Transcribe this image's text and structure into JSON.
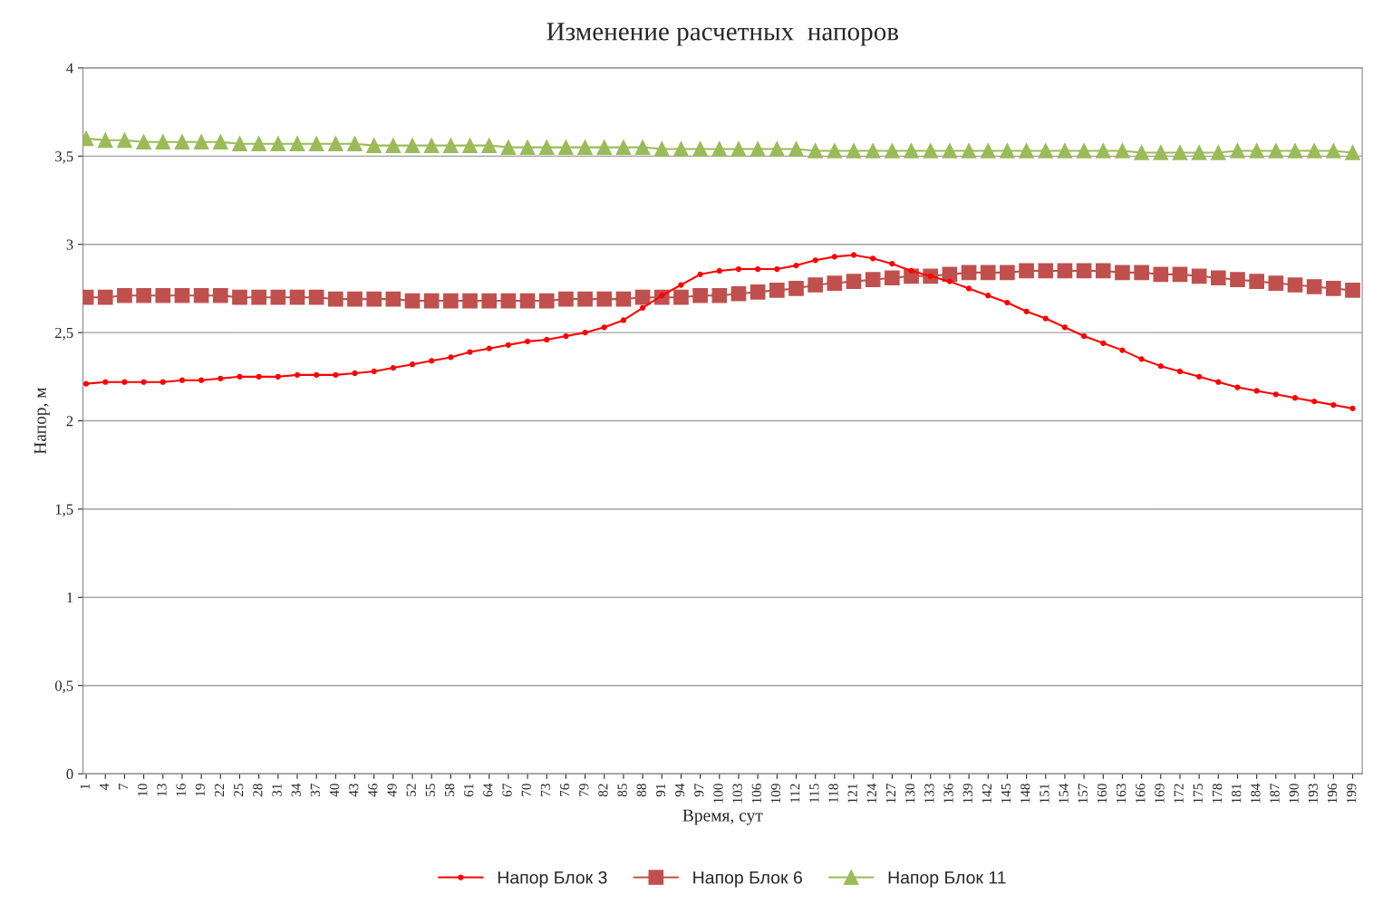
{
  "chart_data": {
    "type": "line",
    "title": "Изменение расчетных  напоров",
    "xlabel": "Время, сут",
    "ylabel": "Напор, м",
    "x": [
      1,
      4,
      7,
      10,
      13,
      16,
      19,
      22,
      25,
      28,
      31,
      34,
      37,
      40,
      43,
      46,
      49,
      52,
      55,
      58,
      61,
      64,
      67,
      70,
      73,
      76,
      79,
      82,
      85,
      88,
      91,
      94,
      97,
      100,
      103,
      106,
      109,
      112,
      115,
      118,
      121,
      124,
      127,
      130,
      133,
      136,
      139,
      142,
      145,
      148,
      151,
      154,
      157,
      160,
      163,
      166,
      169,
      172,
      175,
      178,
      181,
      184,
      187,
      190,
      193,
      196,
      199
    ],
    "xlim": [
      0.5,
      200.5
    ],
    "xticks": [
      1,
      4,
      7,
      10,
      13,
      16,
      19,
      22,
      25,
      28,
      31,
      34,
      37,
      40,
      43,
      46,
      49,
      52,
      55,
      58,
      61,
      64,
      67,
      70,
      73,
      76,
      79,
      82,
      85,
      88,
      91,
      94,
      97,
      100,
      103,
      106,
      109,
      112,
      115,
      118,
      121,
      124,
      127,
      130,
      133,
      136,
      139,
      142,
      145,
      148,
      151,
      154,
      157,
      160,
      163,
      166,
      169,
      172,
      175,
      178,
      181,
      184,
      187,
      190,
      193,
      196,
      199
    ],
    "ylim": [
      0,
      4
    ],
    "yticks": [
      0,
      {
        "value": 0.5,
        "label": "0,5"
      },
      1,
      {
        "value": 1.5,
        "label": "1,5"
      },
      2,
      {
        "value": 2.5,
        "label": "2,5"
      },
      3,
      {
        "value": 3.5,
        "label": "3,5"
      },
      4
    ],
    "grid": "y",
    "legend": "bottom",
    "series": [
      {
        "name": "Напор Блок 3",
        "color": "#ff0000",
        "marker": "circle",
        "values": [
          2.21,
          2.22,
          2.22,
          2.22,
          2.22,
          2.23,
          2.23,
          2.24,
          2.25,
          2.25,
          2.25,
          2.26,
          2.26,
          2.26,
          2.27,
          2.28,
          2.3,
          2.32,
          2.34,
          2.36,
          2.39,
          2.41,
          2.43,
          2.45,
          2.46,
          2.48,
          2.5,
          2.53,
          2.57,
          2.64,
          2.71,
          2.77,
          2.83,
          2.85,
          2.86,
          2.86,
          2.86,
          2.88,
          2.91,
          2.93,
          2.94,
          2.92,
          2.89,
          2.85,
          2.82,
          2.79,
          2.75,
          2.71,
          2.67,
          2.62,
          2.58,
          2.53,
          2.48,
          2.44,
          2.4,
          2.35,
          2.31,
          2.28,
          2.25,
          2.22,
          2.19,
          2.17,
          2.15,
          2.13,
          2.11,
          2.09,
          2.07
        ]
      },
      {
        "name": "Напор Блок 6",
        "color": "#c0504d",
        "marker": "square",
        "values": [
          2.7,
          2.7,
          2.71,
          2.71,
          2.71,
          2.71,
          2.71,
          2.71,
          2.7,
          2.7,
          2.7,
          2.7,
          2.7,
          2.69,
          2.69,
          2.69,
          2.69,
          2.68,
          2.68,
          2.68,
          2.68,
          2.68,
          2.68,
          2.68,
          2.68,
          2.69,
          2.69,
          2.69,
          2.69,
          2.7,
          2.7,
          2.7,
          2.71,
          2.71,
          2.72,
          2.73,
          2.74,
          2.75,
          2.77,
          2.78,
          2.79,
          2.8,
          2.81,
          2.82,
          2.82,
          2.83,
          2.84,
          2.84,
          2.84,
          2.85,
          2.85,
          2.85,
          2.85,
          2.85,
          2.84,
          2.84,
          2.83,
          2.83,
          2.82,
          2.81,
          2.8,
          2.79,
          2.78,
          2.77,
          2.76,
          2.75,
          2.74
        ]
      },
      {
        "name": "Напор Блок 11",
        "color": "#9bbb59",
        "marker": "triangle",
        "values": [
          3.6,
          3.59,
          3.59,
          3.58,
          3.58,
          3.58,
          3.58,
          3.58,
          3.57,
          3.57,
          3.57,
          3.57,
          3.57,
          3.57,
          3.57,
          3.56,
          3.56,
          3.56,
          3.56,
          3.56,
          3.56,
          3.56,
          3.55,
          3.55,
          3.55,
          3.55,
          3.55,
          3.55,
          3.55,
          3.55,
          3.54,
          3.54,
          3.54,
          3.54,
          3.54,
          3.54,
          3.54,
          3.54,
          3.53,
          3.53,
          3.53,
          3.53,
          3.53,
          3.53,
          3.53,
          3.53,
          3.53,
          3.53,
          3.53,
          3.53,
          3.53,
          3.53,
          3.53,
          3.53,
          3.53,
          3.52,
          3.52,
          3.52,
          3.52,
          3.52,
          3.53,
          3.53,
          3.53,
          3.53,
          3.53,
          3.53,
          3.52
        ]
      }
    ]
  }
}
